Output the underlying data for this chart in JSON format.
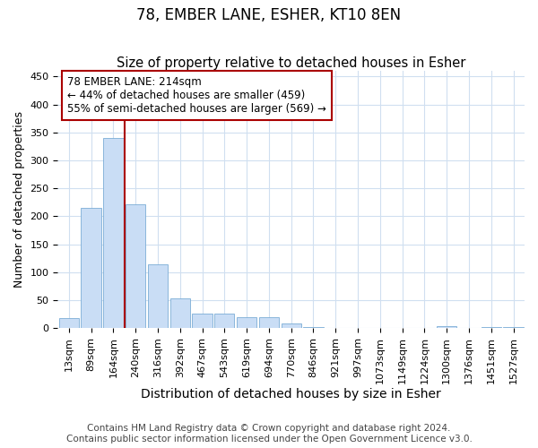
{
  "title1": "78, EMBER LANE, ESHER, KT10 8EN",
  "title2": "Size of property relative to detached houses in Esher",
  "xlabel": "Distribution of detached houses by size in Esher",
  "ylabel": "Number of detached properties",
  "categories": [
    "13sqm",
    "89sqm",
    "164sqm",
    "240sqm",
    "316sqm",
    "392sqm",
    "467sqm",
    "543sqm",
    "619sqm",
    "694sqm",
    "770sqm",
    "846sqm",
    "921sqm",
    "997sqm",
    "1073sqm",
    "1149sqm",
    "1224sqm",
    "1300sqm",
    "1376sqm",
    "1451sqm",
    "1527sqm"
  ],
  "values": [
    18,
    215,
    340,
    222,
    114,
    53,
    26,
    26,
    20,
    20,
    8,
    1,
    0,
    0,
    0,
    0,
    0,
    3,
    0,
    2,
    2
  ],
  "bar_color": "#c9ddf5",
  "bar_edge_color": "#7badd6",
  "vline_x": 2.5,
  "vline_color": "#aa0000",
  "annotation_text": "78 EMBER LANE: 214sqm\n← 44% of detached houses are smaller (459)\n55% of semi-detached houses are larger (569) →",
  "annotation_box_color": "white",
  "annotation_box_edge": "#aa0000",
  "ylim": [
    0,
    460
  ],
  "yticks": [
    0,
    50,
    100,
    150,
    200,
    250,
    300,
    350,
    400,
    450
  ],
  "footnote1": "Contains HM Land Registry data © Crown copyright and database right 2024.",
  "footnote2": "Contains public sector information licensed under the Open Government Licence v3.0.",
  "background_color": "#ffffff",
  "grid_color": "#d0dff0",
  "title1_fontsize": 12,
  "title2_fontsize": 10.5,
  "xlabel_fontsize": 10,
  "ylabel_fontsize": 9,
  "tick_fontsize": 8,
  "footnote_fontsize": 7.5
}
